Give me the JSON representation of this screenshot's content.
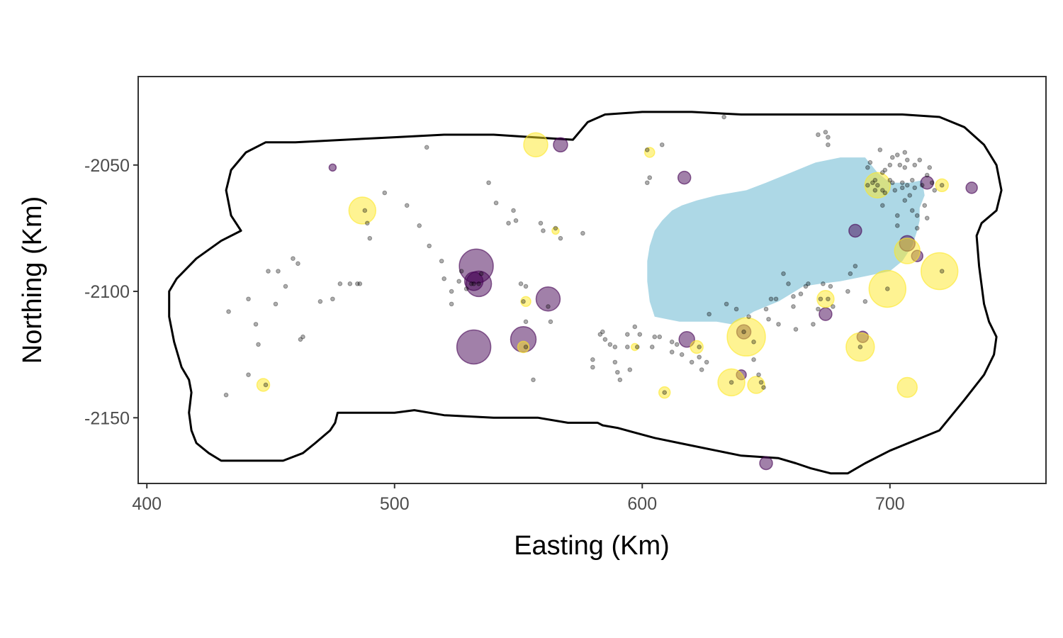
{
  "chart_data": {
    "type": "scatter",
    "title": "",
    "xlabel": "Easting (Km)",
    "ylabel": "Northing (Km)",
    "xlim": [
      396.5,
      763
    ],
    "ylim": [
      -2176,
      -2015
    ],
    "x_ticks": [
      400,
      500,
      600,
      700
    ],
    "y_ticks": [
      -2050,
      -2100,
      -2150
    ],
    "grid": false,
    "legend": "none",
    "colors": {
      "purple": "#440154",
      "yellow": "#fde725",
      "lake": "#add8e6",
      "small_point": "#000000",
      "outline": "#000000",
      "panel_border": "#333333"
    },
    "boundary": [
      [
        438,
        -2076
      ],
      [
        434,
        -2070
      ],
      [
        432,
        -2060
      ],
      [
        434,
        -2052
      ],
      [
        440,
        -2045
      ],
      [
        448,
        -2041
      ],
      [
        460,
        -2041
      ],
      [
        480,
        -2040
      ],
      [
        500,
        -2039
      ],
      [
        520,
        -2038
      ],
      [
        540,
        -2038
      ],
      [
        556,
        -2039
      ],
      [
        572,
        -2040
      ],
      [
        578,
        -2033
      ],
      [
        585,
        -2030
      ],
      [
        600,
        -2029
      ],
      [
        620,
        -2029
      ],
      [
        640,
        -2030
      ],
      [
        660,
        -2030
      ],
      [
        680,
        -2030
      ],
      [
        705,
        -2030
      ],
      [
        720,
        -2031
      ],
      [
        730,
        -2035
      ],
      [
        738,
        -2042
      ],
      [
        743,
        -2050
      ],
      [
        745,
        -2060
      ],
      [
        743,
        -2068
      ],
      [
        737,
        -2073
      ],
      [
        735,
        -2078
      ],
      [
        736,
        -2090
      ],
      [
        738,
        -2105
      ],
      [
        740,
        -2112
      ],
      [
        743,
        -2118
      ],
      [
        742,
        -2125
      ],
      [
        738,
        -2133
      ],
      [
        730,
        -2143
      ],
      [
        720,
        -2155
      ],
      [
        700,
        -2163
      ],
      [
        690,
        -2168
      ],
      [
        683,
        -2172
      ],
      [
        676,
        -2172
      ],
      [
        668,
        -2170
      ],
      [
        662,
        -2168
      ],
      [
        655,
        -2166
      ],
      [
        640,
        -2165
      ],
      [
        630,
        -2163
      ],
      [
        615,
        -2160
      ],
      [
        605,
        -2158
      ],
      [
        590,
        -2154
      ],
      [
        584,
        -2153
      ],
      [
        582,
        -2152
      ],
      [
        570,
        -2152
      ],
      [
        558,
        -2150
      ],
      [
        540,
        -2150
      ],
      [
        520,
        -2149
      ],
      [
        508,
        -2147
      ],
      [
        500,
        -2148
      ],
      [
        490,
        -2148
      ],
      [
        480,
        -2148
      ],
      [
        477,
        -2148
      ],
      [
        476,
        -2152
      ],
      [
        474,
        -2155
      ],
      [
        468,
        -2160
      ],
      [
        463,
        -2164
      ],
      [
        455,
        -2167
      ],
      [
        445,
        -2167
      ],
      [
        435,
        -2167
      ],
      [
        430,
        -2167
      ],
      [
        425,
        -2164
      ],
      [
        420,
        -2160
      ],
      [
        418,
        -2155
      ],
      [
        417,
        -2148
      ],
      [
        418,
        -2140
      ],
      [
        417,
        -2135
      ],
      [
        414,
        -2130
      ],
      [
        411,
        -2120
      ],
      [
        409,
        -2110
      ],
      [
        409,
        -2100
      ],
      [
        412,
        -2095
      ],
      [
        420,
        -2087
      ],
      [
        430,
        -2080
      ]
    ],
    "lake": [
      [
        642,
        -2060
      ],
      [
        650,
        -2057
      ],
      [
        660,
        -2053
      ],
      [
        670,
        -2049
      ],
      [
        680,
        -2047
      ],
      [
        690,
        -2047
      ],
      [
        695,
        -2053
      ],
      [
        700,
        -2057
      ],
      [
        708,
        -2057
      ],
      [
        713,
        -2056
      ],
      [
        714,
        -2062
      ],
      [
        712,
        -2067
      ],
      [
        712,
        -2072
      ],
      [
        711,
        -2076
      ],
      [
        709,
        -2082
      ],
      [
        705,
        -2088
      ],
      [
        700,
        -2092
      ],
      [
        690,
        -2094
      ],
      [
        680,
        -2096
      ],
      [
        672,
        -2097
      ],
      [
        665,
        -2098
      ],
      [
        660,
        -2101
      ],
      [
        655,
        -2104
      ],
      [
        650,
        -2106
      ],
      [
        645,
        -2108
      ],
      [
        640,
        -2111
      ],
      [
        636,
        -2113
      ],
      [
        630,
        -2112
      ],
      [
        622,
        -2112
      ],
      [
        615,
        -2112
      ],
      [
        610,
        -2111
      ],
      [
        605,
        -2110
      ],
      [
        603,
        -2104
      ],
      [
        602,
        -2096
      ],
      [
        602,
        -2088
      ],
      [
        603,
        -2082
      ],
      [
        605,
        -2076
      ],
      [
        608,
        -2072
      ],
      [
        612,
        -2068
      ],
      [
        616,
        -2066
      ],
      [
        622,
        -2064
      ],
      [
        630,
        -2062
      ],
      [
        636,
        -2061
      ]
    ],
    "purple_circles": [
      {
        "x": 475,
        "y": -2051,
        "size": 5
      },
      {
        "x": 567,
        "y": -2042,
        "size": 10
      },
      {
        "x": 617,
        "y": -2055,
        "size": 9
      },
      {
        "x": 533,
        "y": -2090,
        "size": 24
      },
      {
        "x": 534,
        "y": -2097,
        "size": 18
      },
      {
        "x": 532,
        "y": -2096,
        "size": 13
      },
      {
        "x": 562,
        "y": -2103,
        "size": 17
      },
      {
        "x": 532,
        "y": -2122,
        "size": 24
      },
      {
        "x": 552,
        "y": -2119,
        "size": 18
      },
      {
        "x": 618,
        "y": -2119,
        "size": 11
      },
      {
        "x": 641,
        "y": -2116,
        "size": 10
      },
      {
        "x": 640,
        "y": -2133,
        "size": 7
      },
      {
        "x": 650,
        "y": -2168,
        "size": 9
      },
      {
        "x": 674,
        "y": -2109,
        "size": 9
      },
      {
        "x": 686,
        "y": -2076,
        "size": 9
      },
      {
        "x": 689,
        "y": -2118,
        "size": 8
      },
      {
        "x": 707,
        "y": -2081,
        "size": 11
      },
      {
        "x": 711,
        "y": -2086,
        "size": 8
      },
      {
        "x": 715,
        "y": -2057,
        "size": 9
      },
      {
        "x": 733,
        "y": -2059,
        "size": 8
      }
    ],
    "yellow_circles": [
      {
        "x": 557,
        "y": -2042,
        "size": 17
      },
      {
        "x": 487,
        "y": -2068,
        "size": 19
      },
      {
        "x": 565,
        "y": -2076,
        "size": 5
      },
      {
        "x": 603,
        "y": -2045,
        "size": 7
      },
      {
        "x": 553,
        "y": -2104,
        "size": 7
      },
      {
        "x": 552,
        "y": -2122,
        "size": 8
      },
      {
        "x": 447,
        "y": -2137,
        "size": 9
      },
      {
        "x": 597,
        "y": -2122,
        "size": 5
      },
      {
        "x": 609,
        "y": -2140,
        "size": 8
      },
      {
        "x": 622,
        "y": -2122,
        "size": 9
      },
      {
        "x": 642,
        "y": -2118,
        "size": 27
      },
      {
        "x": 636,
        "y": -2136,
        "size": 19
      },
      {
        "x": 646,
        "y": -2137,
        "size": 12
      },
      {
        "x": 674,
        "y": -2103,
        "size": 12
      },
      {
        "x": 688,
        "y": -2122,
        "size": 20
      },
      {
        "x": 695,
        "y": -2058,
        "size": 18
      },
      {
        "x": 699,
        "y": -2099,
        "size": 26
      },
      {
        "x": 707,
        "y": -2084,
        "size": 18
      },
      {
        "x": 720,
        "y": -2092,
        "size": 26
      },
      {
        "x": 707,
        "y": -2138,
        "size": 14
      },
      {
        "x": 721,
        "y": -2058,
        "size": 9
      }
    ],
    "small_points": [
      [
        432,
        -2141
      ],
      [
        433,
        -2108
      ],
      [
        441,
        -2103
      ],
      [
        441,
        -2133
      ],
      [
        444,
        -2113
      ],
      [
        445,
        -2121
      ],
      [
        448,
        -2137
      ],
      [
        449,
        -2092
      ],
      [
        452,
        -2105
      ],
      [
        453,
        -2092
      ],
      [
        456,
        -2098
      ],
      [
        459,
        -2087
      ],
      [
        461,
        -2089
      ],
      [
        462,
        -2119
      ],
      [
        463,
        -2118
      ],
      [
        470,
        -2104
      ],
      [
        475,
        -2103
      ],
      [
        478,
        -2097
      ],
      [
        482,
        -2097
      ],
      [
        485,
        -2097
      ],
      [
        486,
        -2097
      ],
      [
        488,
        -2068
      ],
      [
        489,
        -2073
      ],
      [
        490,
        -2079
      ],
      [
        496,
        -2061
      ],
      [
        505,
        -2066
      ],
      [
        510,
        -2074
      ],
      [
        513,
        -2043
      ],
      [
        514,
        -2082
      ],
      [
        519,
        -2088
      ],
      [
        520,
        -2095
      ],
      [
        523,
        -2100
      ],
      [
        523,
        -2105
      ],
      [
        526,
        -2096
      ],
      [
        527,
        -2092
      ],
      [
        529,
        -2099
      ],
      [
        531,
        -2097
      ],
      [
        532,
        -2097
      ],
      [
        534,
        -2097
      ],
      [
        535,
        -2093
      ],
      [
        538,
        -2057
      ],
      [
        541,
        -2065
      ],
      [
        546,
        -2073
      ],
      [
        548,
        -2068
      ],
      [
        549,
        -2072
      ],
      [
        551,
        -2097
      ],
      [
        552,
        -2104
      ],
      [
        553,
        -2098
      ],
      [
        553,
        -2112
      ],
      [
        553,
        -2122
      ],
      [
        556,
        -2135
      ],
      [
        559,
        -2073
      ],
      [
        560,
        -2076
      ],
      [
        562,
        -2106
      ],
      [
        563,
        -2112
      ],
      [
        565,
        -2075
      ],
      [
        567,
        -2079
      ],
      [
        576,
        -2077
      ],
      [
        580,
        -2127
      ],
      [
        580,
        -2130
      ],
      [
        583,
        -2117
      ],
      [
        584,
        -2116
      ],
      [
        585,
        -2119
      ],
      [
        587,
        -2121
      ],
      [
        589,
        -2122
      ],
      [
        589,
        -2128
      ],
      [
        590,
        -2132
      ],
      [
        591,
        -2135
      ],
      [
        594,
        -2117
      ],
      [
        594,
        -2122
      ],
      [
        595,
        -2131
      ],
      [
        597,
        -2114
      ],
      [
        598,
        -2122
      ],
      [
        599,
        -2117
      ],
      [
        602,
        -2044
      ],
      [
        602,
        -2057
      ],
      [
        603,
        -2055
      ],
      [
        604,
        -2122
      ],
      [
        605,
        -2118
      ],
      [
        607,
        -2118
      ],
      [
        608,
        -2042
      ],
      [
        609,
        -2140
      ],
      [
        612,
        -2120
      ],
      [
        612,
        -2124
      ],
      [
        614,
        -2121
      ],
      [
        616,
        -2125
      ],
      [
        620,
        -2128
      ],
      [
        623,
        -2122
      ],
      [
        623,
        -2126
      ],
      [
        624,
        -2131
      ],
      [
        626,
        -2128
      ],
      [
        627,
        -2109
      ],
      [
        633,
        -2031
      ],
      [
        634,
        -2105
      ],
      [
        636,
        -2136
      ],
      [
        638,
        -2107
      ],
      [
        641,
        -2116
      ],
      [
        643,
        -2110
      ],
      [
        645,
        -2120
      ],
      [
        645,
        -2127
      ],
      [
        647,
        -2133
      ],
      [
        648,
        -2136
      ],
      [
        649,
        -2138
      ],
      [
        650,
        -2107
      ],
      [
        651,
        -2111
      ],
      [
        652,
        -2103
      ],
      [
        654,
        -2103
      ],
      [
        655,
        -2113
      ],
      [
        657,
        -2093
      ],
      [
        659,
        -2097
      ],
      [
        661,
        -2106
      ],
      [
        661,
        -2102
      ],
      [
        662,
        -2115
      ],
      [
        664,
        -2101
      ],
      [
        666,
        -2098
      ],
      [
        667,
        -2097
      ],
      [
        669,
        -2113
      ],
      [
        671,
        -2038
      ],
      [
        671,
        -2107
      ],
      [
        672,
        -2103
      ],
      [
        673,
        -2097
      ],
      [
        674,
        -2037
      ],
      [
        675,
        -2039
      ],
      [
        675,
        -2042
      ],
      [
        675,
        -2103
      ],
      [
        676,
        -2098
      ],
      [
        677,
        -2106
      ],
      [
        683,
        -2100
      ],
      [
        684,
        -2093
      ],
      [
        686,
        -2090
      ],
      [
        688,
        -2122
      ],
      [
        690,
        -2104
      ],
      [
        691,
        -2051
      ],
      [
        691,
        -2058
      ],
      [
        692,
        -2049
      ],
      [
        693,
        -2057
      ],
      [
        694,
        -2056
      ],
      [
        694,
        -2060
      ],
      [
        695,
        -2058
      ],
      [
        696,
        -2044
      ],
      [
        697,
        -2053
      ],
      [
        697,
        -2060
      ],
      [
        697,
        -2066
      ],
      [
        698,
        -2052
      ],
      [
        698,
        -2061
      ],
      [
        699,
        -2099
      ],
      [
        700,
        -2050
      ],
      [
        700,
        -2056
      ],
      [
        701,
        -2047
      ],
      [
        701,
        -2057
      ],
      [
        702,
        -2060
      ],
      [
        703,
        -2046
      ],
      [
        703,
        -2070
      ],
      [
        703,
        -2074
      ],
      [
        704,
        -2050
      ],
      [
        705,
        -2057
      ],
      [
        705,
        -2059
      ],
      [
        706,
        -2045
      ],
      [
        706,
        -2051
      ],
      [
        706,
        -2064
      ],
      [
        707,
        -2048
      ],
      [
        707,
        -2058
      ],
      [
        708,
        -2062
      ],
      [
        709,
        -2056
      ],
      [
        709,
        -2068
      ],
      [
        710,
        -2050
      ],
      [
        710,
        -2059
      ],
      [
        711,
        -2070
      ],
      [
        711,
        -2075
      ],
      [
        712,
        -2048
      ],
      [
        713,
        -2058
      ],
      [
        714,
        -2066
      ],
      [
        715,
        -2054
      ],
      [
        715,
        -2071
      ],
      [
        716,
        -2051
      ],
      [
        717,
        -2057
      ],
      [
        718,
        -2060
      ],
      [
        721,
        -2058
      ],
      [
        721,
        -2092
      ]
    ]
  }
}
